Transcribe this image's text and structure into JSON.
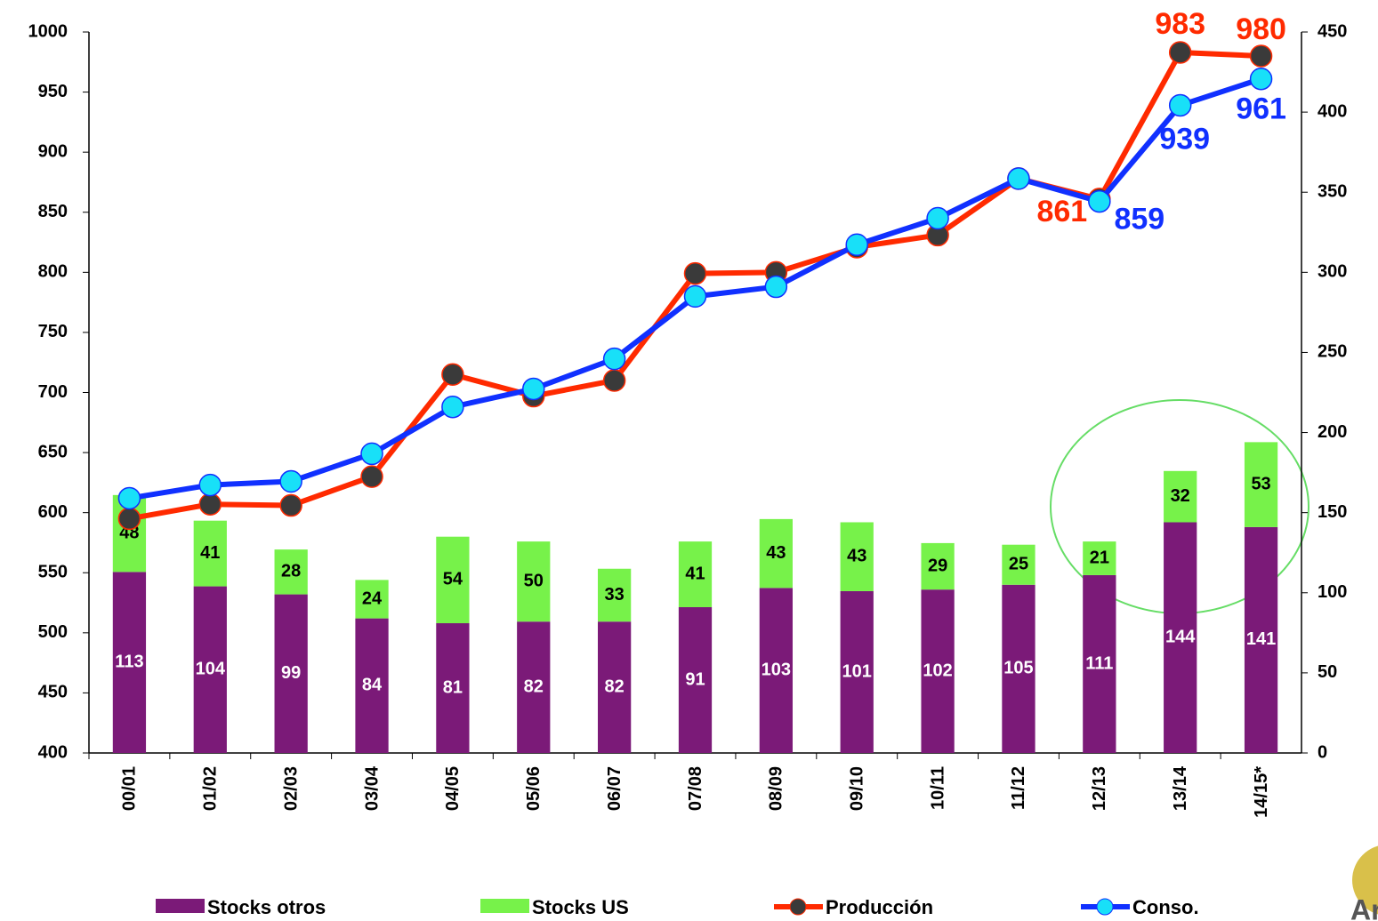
{
  "chart_data": {
    "type": "bar-line",
    "categories": [
      "00/01",
      "01/02",
      "02/03",
      "03/04",
      "04/05",
      "05/06",
      "06/07",
      "07/08",
      "08/09",
      "09/10",
      "10/11",
      "11/12",
      "12/13",
      "13/14",
      "14/15*"
    ],
    "ylim": [
      400,
      1000
    ],
    "yticks": [
      400,
      450,
      500,
      550,
      600,
      650,
      700,
      750,
      800,
      850,
      900,
      950,
      1000
    ],
    "y2lim": [
      0,
      450
    ],
    "y2ticks": [
      0,
      50,
      100,
      150,
      200,
      250,
      300,
      350,
      400,
      450
    ],
    "series": [
      {
        "name": "Stocks otros",
        "type": "bar",
        "axis": "y2",
        "color": "#7b1a78",
        "values": [
          113,
          104,
          99,
          84,
          81,
          82,
          82,
          91,
          103,
          101,
          102,
          105,
          111,
          144,
          141
        ]
      },
      {
        "name": "Stocks US",
        "type": "bar",
        "axis": "y2",
        "color": "#77f24a",
        "values": [
          48,
          41,
          28,
          24,
          54,
          50,
          33,
          41,
          43,
          43,
          29,
          25,
          21,
          32,
          53
        ]
      },
      {
        "name": "Producción",
        "type": "line",
        "color": "#ff2a00",
        "marker_color": "#3a3a3a",
        "values": [
          595,
          607,
          606,
          630,
          715,
          697,
          710,
          799,
          800,
          821,
          831,
          878,
          861,
          983,
          980
        ],
        "value_labels": [
          null,
          null,
          null,
          null,
          null,
          null,
          null,
          null,
          null,
          null,
          null,
          null,
          "861",
          "983",
          "980"
        ]
      },
      {
        "name": "Conso.",
        "type": "line",
        "color": "#1030ff",
        "marker_color": "#18e0f8",
        "values": [
          612,
          623,
          626,
          649,
          688,
          703,
          728,
          780,
          788,
          823,
          845,
          878,
          859,
          939,
          961
        ],
        "value_labels": [
          null,
          null,
          null,
          null,
          null,
          null,
          null,
          null,
          null,
          null,
          null,
          null,
          "859",
          "939",
          "961"
        ]
      }
    ],
    "logo": "Arge"
  }
}
